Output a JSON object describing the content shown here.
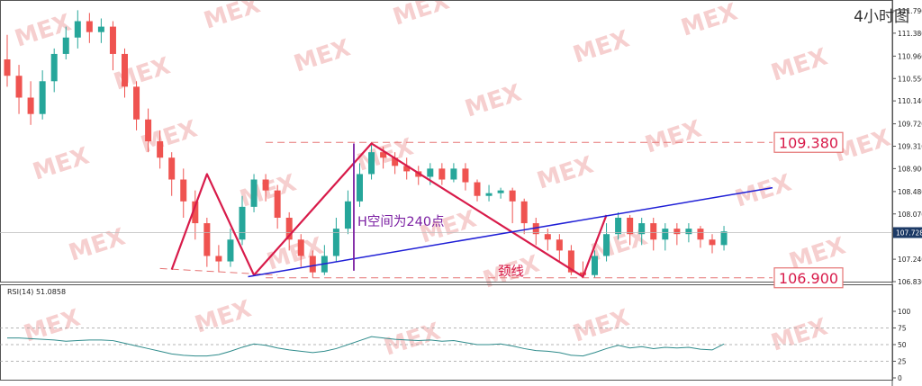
{
  "timeframe_label": "4小时图",
  "colors": {
    "bull": "#26a69a",
    "bear": "#ef5350",
    "pattern": "#d81b4a",
    "trendline": "#1f1fd6",
    "hspace": "#7b1fa2",
    "level_box": "#e57373",
    "rsi_line": "#2e8b8b",
    "current_price_bg": "#1c3a66",
    "watermark": "#f6cfcf"
  },
  "watermark": "MEX",
  "chart_data": [
    {
      "type": "candlestick",
      "ylim": [
        106.83,
        111.79
      ],
      "y_ticks": [
        "111.790",
        "111.380",
        "110.960",
        "110.550",
        "110.140",
        "109.720",
        "109.310",
        "108.900",
        "108.480",
        "108.070",
        "107.240",
        "106.830"
      ],
      "current_price": "107.728",
      "levels": [
        {
          "label": "109.380",
          "value": 109.38
        },
        {
          "label": "106.900",
          "value": 106.9
        }
      ],
      "annotations": {
        "h_space": "H空间为240点",
        "neckline": "颈线"
      },
      "candles": [
        [
          110.9,
          110.6,
          111.35,
          110.4
        ],
        [
          110.6,
          110.2,
          110.8,
          109.9
        ],
        [
          110.2,
          109.9,
          110.5,
          109.7
        ],
        [
          109.9,
          110.5,
          110.7,
          109.8
        ],
        [
          110.5,
          111.0,
          111.1,
          110.3
        ],
        [
          111.0,
          111.3,
          111.5,
          110.9
        ],
        [
          111.3,
          111.6,
          111.8,
          111.1
        ],
        [
          111.6,
          111.4,
          111.75,
          111.2
        ],
        [
          111.4,
          111.5,
          111.65,
          111.2
        ],
        [
          111.5,
          111.0,
          111.6,
          110.7
        ],
        [
          111.0,
          110.4,
          111.1,
          110.2
        ],
        [
          110.4,
          109.8,
          110.5,
          109.6
        ],
        [
          109.8,
          109.4,
          110.0,
          109.2
        ],
        [
          109.4,
          109.1,
          109.6,
          108.9
        ],
        [
          109.1,
          108.7,
          109.2,
          108.4
        ],
        [
          108.7,
          108.3,
          108.9,
          108.0
        ],
        [
          108.3,
          107.9,
          108.5,
          107.6
        ],
        [
          107.9,
          107.3,
          108.0,
          107.1
        ],
        [
          107.3,
          107.2,
          107.5,
          107.0
        ],
        [
          107.2,
          107.6,
          107.8,
          107.1
        ],
        [
          107.6,
          108.2,
          108.4,
          107.5
        ],
        [
          108.2,
          108.7,
          108.8,
          108.1
        ],
        [
          108.7,
          108.5,
          108.8,
          108.3
        ],
        [
          108.5,
          108.0,
          108.6,
          107.8
        ],
        [
          108.0,
          107.6,
          108.1,
          107.4
        ],
        [
          107.6,
          107.3,
          107.7,
          107.1
        ],
        [
          107.3,
          107.0,
          107.4,
          106.9
        ],
        [
          107.0,
          107.3,
          107.5,
          106.95
        ],
        [
          107.3,
          107.8,
          108.0,
          107.2
        ],
        [
          107.8,
          108.3,
          108.5,
          107.7
        ],
        [
          108.3,
          108.8,
          109.0,
          108.2
        ],
        [
          108.8,
          109.2,
          109.38,
          108.7
        ],
        [
          109.2,
          109.1,
          109.3,
          108.9
        ],
        [
          109.1,
          108.95,
          109.2,
          108.8
        ],
        [
          108.95,
          108.85,
          109.1,
          108.7
        ],
        [
          108.85,
          108.75,
          108.95,
          108.6
        ],
        [
          108.75,
          108.9,
          109.0,
          108.6
        ],
        [
          108.9,
          108.7,
          109.0,
          108.6
        ],
        [
          108.7,
          108.9,
          109.0,
          108.65
        ],
        [
          108.9,
          108.65,
          109.0,
          108.5
        ],
        [
          108.65,
          108.4,
          108.7,
          108.3
        ],
        [
          108.4,
          108.45,
          108.6,
          108.3
        ],
        [
          108.45,
          108.5,
          108.55,
          108.35
        ],
        [
          108.5,
          108.3,
          108.55,
          107.9
        ],
        [
          108.3,
          107.9,
          108.35,
          107.7
        ],
        [
          107.9,
          107.7,
          108.0,
          107.5
        ],
        [
          107.7,
          107.6,
          107.8,
          107.4
        ],
        [
          107.6,
          107.4,
          107.7,
          107.2
        ],
        [
          107.4,
          107.0,
          107.5,
          106.95
        ],
        [
          107.0,
          106.95,
          107.2,
          106.9
        ],
        [
          106.95,
          107.3,
          107.4,
          106.9
        ],
        [
          107.3,
          107.7,
          107.9,
          107.2
        ],
        [
          107.7,
          108.0,
          108.1,
          107.6
        ],
        [
          108.0,
          107.7,
          108.05,
          107.5
        ],
        [
          107.7,
          107.9,
          108.0,
          107.5
        ],
        [
          107.9,
          107.6,
          108.0,
          107.4
        ],
        [
          107.6,
          107.8,
          107.9,
          107.4
        ],
        [
          107.8,
          107.7,
          107.9,
          107.5
        ],
        [
          107.7,
          107.8,
          107.9,
          107.55
        ],
        [
          107.8,
          107.6,
          107.85,
          107.45
        ],
        [
          107.6,
          107.5,
          107.7,
          107.35
        ],
        [
          107.5,
          107.75,
          107.85,
          107.4
        ]
      ]
    },
    {
      "type": "line",
      "title": "RSI(14) 51.0858",
      "ylim": [
        0,
        100
      ],
      "y_ticks": [
        "100",
        "75",
        "50",
        "25",
        "0"
      ],
      "values": [
        60,
        60,
        59,
        58,
        57,
        55,
        56,
        57,
        57,
        56,
        52,
        48,
        44,
        40,
        36,
        34,
        33,
        33,
        35,
        40,
        46,
        51,
        49,
        45,
        42,
        40,
        38,
        40,
        44,
        50,
        56,
        62,
        60,
        58,
        57,
        56,
        57,
        55,
        56,
        53,
        50,
        50,
        51,
        48,
        44,
        41,
        40,
        38,
        34,
        33,
        38,
        44,
        49,
        45,
        47,
        44,
        46,
        45,
        46,
        43,
        42,
        51
      ]
    }
  ]
}
